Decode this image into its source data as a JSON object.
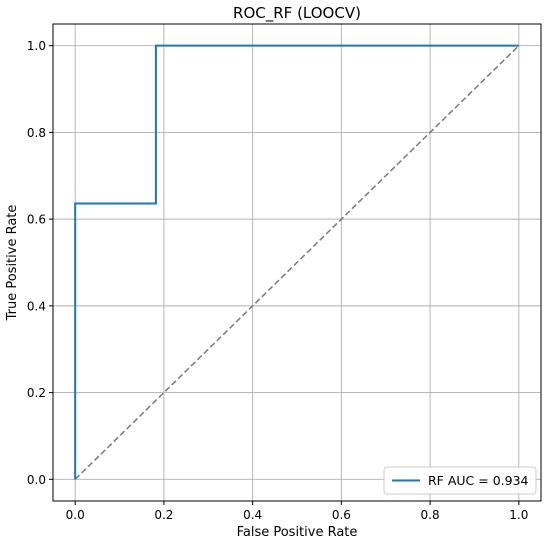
{
  "chart_data": {
    "type": "line",
    "title": "ROC_RF (LOOCV)",
    "xlabel": "False Positive Rate",
    "ylabel": "True Positive Rate",
    "xlim": [
      -0.05,
      1.05
    ],
    "ylim": [
      -0.05,
      1.05
    ],
    "xticks": [
      0.0,
      0.2,
      0.4,
      0.6,
      0.8,
      1.0
    ],
    "xtick_labels": [
      "0.0",
      "0.2",
      "0.4",
      "0.6",
      "0.8",
      "1.0"
    ],
    "yticks": [
      0.0,
      0.2,
      0.4,
      0.6,
      0.8,
      1.0
    ],
    "ytick_labels": [
      "0.0",
      "0.2",
      "0.4",
      "0.6",
      "0.8",
      "1.0"
    ],
    "grid": true,
    "legend_position": "lower-right",
    "series": [
      {
        "name": "RF AUC = 0.934",
        "color": "#1f77b4",
        "style": "solid",
        "x": [
          0.0,
          0.0,
          0.182,
          0.182,
          1.0
        ],
        "y": [
          0.0,
          0.636,
          0.636,
          1.0,
          1.0
        ]
      },
      {
        "color": "#808080",
        "style": "dashed",
        "x": [
          0.0,
          1.0
        ],
        "y": [
          0.0,
          1.0
        ]
      }
    ]
  }
}
